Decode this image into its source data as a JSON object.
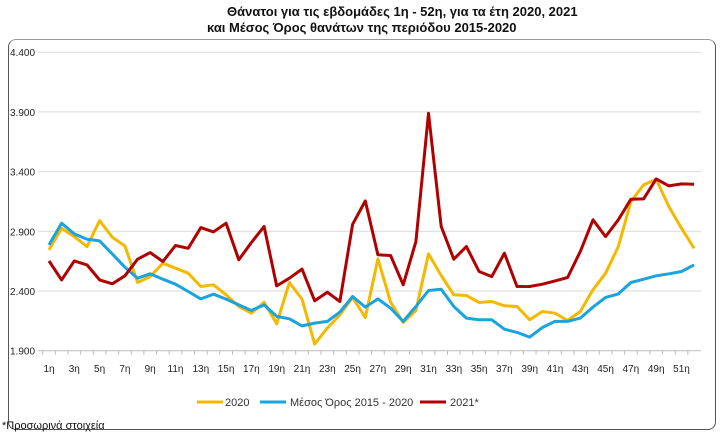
{
  "chart_data": {
    "type": "line",
    "title_line1": "Θάνατοι για τις εβδομάδες 1η - 52η, για τα έτη 2020, 2021",
    "title_line2": "και Μέσος Όρος θανάτων της περιόδου 2015-2020",
    "xlabel": "",
    "ylabel": "",
    "ylim": [
      1900,
      4400
    ],
    "yticks": [
      1900,
      2400,
      2900,
      3400,
      3900,
      4400
    ],
    "ytick_labels": [
      "1.900",
      "2.400",
      "2.900",
      "3.400",
      "3.900",
      "4.400"
    ],
    "xtick_labels": [
      "1η",
      "3η",
      "5η",
      "7η",
      "9η",
      "11η",
      "13η",
      "15η",
      "17η",
      "19η",
      "21η",
      "23η",
      "25η",
      "27η",
      "29η",
      "31η",
      "33η",
      "35η",
      "37η",
      "39η",
      "41η",
      "43η",
      "45η",
      "47η",
      "49η",
      "51η"
    ],
    "weeks": 52,
    "grid": true,
    "legend_position": "bottom",
    "series": [
      {
        "name": "2020",
        "color": "#F5B800",
        "values": [
          2744,
          2926,
          2856,
          2772,
          2990,
          2850,
          2778,
          2471,
          2521,
          2633,
          2591,
          2549,
          2438,
          2452,
          2368,
          2270,
          2214,
          2306,
          2125,
          2471,
          2332,
          1955,
          2089,
          2200,
          2346,
          2178,
          2669,
          2306,
          2136,
          2237,
          2711,
          2530,
          2368,
          2362,
          2304,
          2312,
          2276,
          2270,
          2159,
          2228,
          2214,
          2153,
          2228,
          2410,
          2549,
          2772,
          3149,
          3289,
          3336,
          3107,
          2926,
          2758
        ]
      },
      {
        "name": "Μέσος Όρος 2015 - 2020",
        "color": "#1AA3DC",
        "values": [
          2786,
          2968,
          2878,
          2834,
          2820,
          2711,
          2599,
          2507,
          2544,
          2499,
          2457,
          2396,
          2334,
          2373,
          2332,
          2284,
          2237,
          2284,
          2187,
          2167,
          2108,
          2131,
          2145,
          2223,
          2354,
          2265,
          2334,
          2256,
          2145,
          2270,
          2404,
          2415,
          2270,
          2173,
          2159,
          2159,
          2080,
          2053,
          2014,
          2094,
          2145,
          2145,
          2173,
          2265,
          2346,
          2376,
          2471,
          2499,
          2527,
          2544,
          2563,
          2619
        ]
      },
      {
        "name": "2021*",
        "color": "#B00000",
        "values": [
          2652,
          2493,
          2652,
          2619,
          2493,
          2460,
          2527,
          2666,
          2722,
          2647,
          2781,
          2758,
          2931,
          2895,
          2968,
          2661,
          2806,
          2940,
          2443,
          2507,
          2583,
          2318,
          2390,
          2312,
          2959,
          3155,
          2703,
          2697,
          2452,
          2814,
          3888,
          2940,
          2666,
          2772,
          2563,
          2521,
          2717,
          2438,
          2438,
          2457,
          2485,
          2513,
          2731,
          2996,
          2856,
          2996,
          3169,
          3171,
          3339,
          3280,
          3297,
          3294
        ]
      }
    ],
    "footnote": "*Προσωρινά στοιχεία"
  }
}
